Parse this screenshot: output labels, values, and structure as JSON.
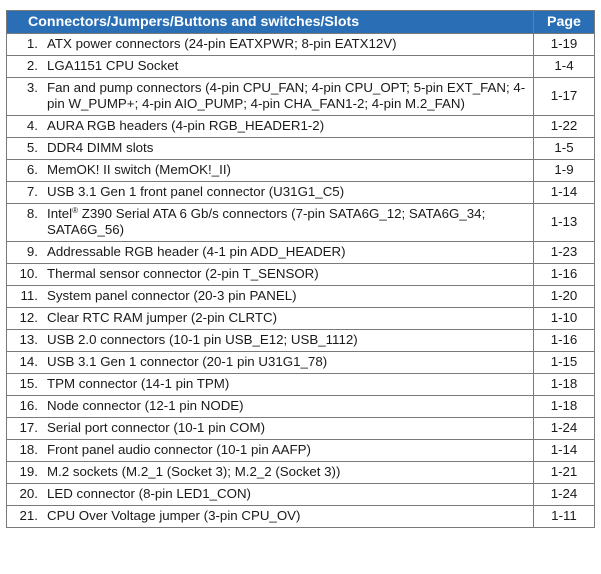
{
  "table": {
    "header": {
      "description": "Connectors/Jumpers/Buttons and switches/Slots",
      "page": "Page"
    },
    "header_color": "#2a6fb6",
    "rows": [
      {
        "num": "1.",
        "text": "ATX power connectors (24-pin EATXPWR; 8-pin EATX12V)",
        "page": "1-19"
      },
      {
        "num": "2.",
        "text": "LGA1151 CPU Socket",
        "page": "1-4"
      },
      {
        "num": "3.",
        "text": "Fan and pump connectors (4-pin CPU_FAN; 4-pin CPU_OPT; 5-pin EXT_FAN; 4-pin W_PUMP+; 4-pin AIO_PUMP; 4-pin CHA_FAN1-2; 4-pin M.2_FAN)",
        "page": "1-17"
      },
      {
        "num": "4.",
        "text": "AURA RGB headers (4-pin RGB_HEADER1-2)",
        "page": "1-22"
      },
      {
        "num": "5.",
        "text": "DDR4 DIMM slots",
        "page": "1-5"
      },
      {
        "num": "6.",
        "text": "MemOK! II switch (MemOK!_II)",
        "page": "1-9"
      },
      {
        "num": "7.",
        "text": "USB 3.1 Gen 1 front panel connector (U31G1_C5)",
        "page": "1-14"
      },
      {
        "num": "8.",
        "text_prefix": "Intel",
        "text_sup": "®",
        "text_suffix": " Z390 Serial ATA 6 Gb/s connectors (7-pin SATA6G_12; SATA6G_34; SATA6G_56)",
        "page": "1-13"
      },
      {
        "num": "9.",
        "text": "Addressable RGB header (4-1 pin ADD_HEADER)",
        "page": "1-23"
      },
      {
        "num": "10.",
        "text": "Thermal sensor connector (2-pin T_SENSOR)",
        "page": "1-16"
      },
      {
        "num": "11.",
        "text": "System panel connector (20-3 pin PANEL)",
        "page": "1-20"
      },
      {
        "num": "12.",
        "text": "Clear RTC RAM jumper (2-pin CLRTC)",
        "page": "1-10"
      },
      {
        "num": "13.",
        "text": "USB 2.0 connectors (10-1 pin USB_E12; USB_1112)",
        "page": "1-16"
      },
      {
        "num": "14.",
        "text": "USB 3.1 Gen 1 connector (20-1 pin U31G1_78)",
        "page": "1-15"
      },
      {
        "num": "15.",
        "text": "TPM connector (14-1 pin TPM)",
        "page": "1-18"
      },
      {
        "num": "16.",
        "text": "Node connector (12-1 pin NODE)",
        "page": "1-18"
      },
      {
        "num": "17.",
        "text": "Serial port connector (10-1 pin COM)",
        "page": "1-24"
      },
      {
        "num": "18.",
        "text": "Front panel audio connector (10-1 pin AAFP)",
        "page": "1-14"
      },
      {
        "num": "19.",
        "text": "M.2 sockets (M.2_1 (Socket 3); M.2_2 (Socket 3))",
        "page": "1-21"
      },
      {
        "num": "20.",
        "text": "LED connector (8-pin LED1_CON)",
        "page": "1-24"
      },
      {
        "num": "21.",
        "text": "CPU Over Voltage jumper (3-pin CPU_OV)",
        "page": "1-11"
      }
    ]
  }
}
